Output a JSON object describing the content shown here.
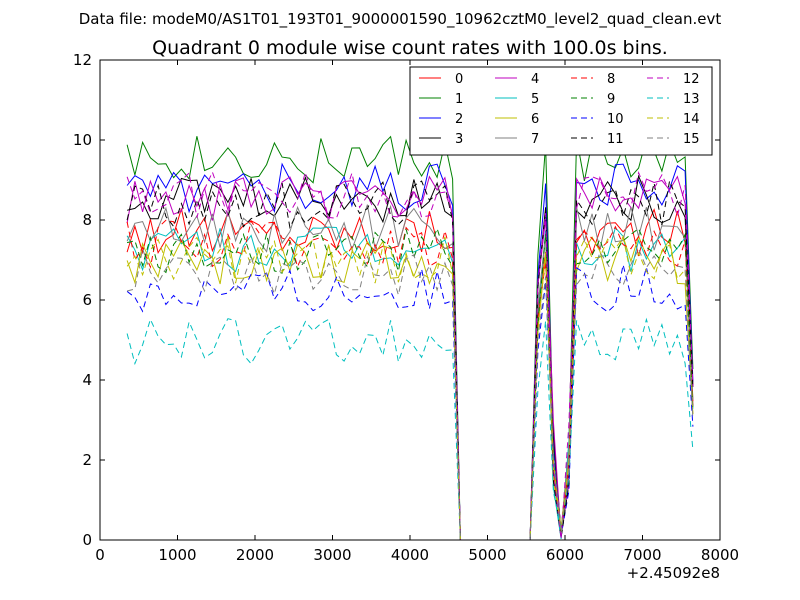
{
  "chart_data": {
    "type": "line",
    "suptitle": "Data file: modeM0/AS1T01_193T01_9000001590_10962cztM0_level2_quad_clean.evt",
    "title": "Quadrant 0 module wise count rates with 100.0s bins.",
    "xlabel": "",
    "ylabel": "",
    "x_offset_label": "+2.45092e8",
    "xlim": [
      0,
      8000
    ],
    "ylim": [
      0,
      12
    ],
    "xticks": [
      0,
      1000,
      2000,
      3000,
      4000,
      5000,
      6000,
      7000,
      8000
    ],
    "yticks": [
      0,
      2,
      4,
      6,
      8,
      10,
      12
    ],
    "grid": false,
    "legend_position": "top-right",
    "x_start": 350,
    "x_step": 100,
    "gap_start_index": 43,
    "gap_end_index": 52,
    "dip_index": 56,
    "base_levels": [
      7.7,
      9.5,
      8.8,
      8.5,
      8.5,
      7.3,
      7.0,
      7.8,
      7.4,
      7.2,
      6.3,
      8.4,
      8.6,
      5.0,
      7.0,
      6.7
    ],
    "series": [
      {
        "name": "0",
        "color": "#ff0000",
        "dash": "solid"
      },
      {
        "name": "1",
        "color": "#008000",
        "dash": "solid"
      },
      {
        "name": "2",
        "color": "#0000ff",
        "dash": "solid"
      },
      {
        "name": "3",
        "color": "#000000",
        "dash": "solid"
      },
      {
        "name": "4",
        "color": "#bf00bf",
        "dash": "solid"
      },
      {
        "name": "5",
        "color": "#00bfbf",
        "dash": "solid"
      },
      {
        "name": "6",
        "color": "#bfbf00",
        "dash": "solid"
      },
      {
        "name": "7",
        "color": "#808080",
        "dash": "solid"
      },
      {
        "name": "8",
        "color": "#ff0000",
        "dash": "dashed"
      },
      {
        "name": "9",
        "color": "#008000",
        "dash": "dashed"
      },
      {
        "name": "10",
        "color": "#0000ff",
        "dash": "dashed"
      },
      {
        "name": "11",
        "color": "#000000",
        "dash": "dashed"
      },
      {
        "name": "12",
        "color": "#bf00bf",
        "dash": "dashed"
      },
      {
        "name": "13",
        "color": "#00bfbf",
        "dash": "dashed"
      },
      {
        "name": "14",
        "color": "#bfbf00",
        "dash": "dashed"
      },
      {
        "name": "15",
        "color": "#808080",
        "dash": "dashed"
      }
    ]
  }
}
